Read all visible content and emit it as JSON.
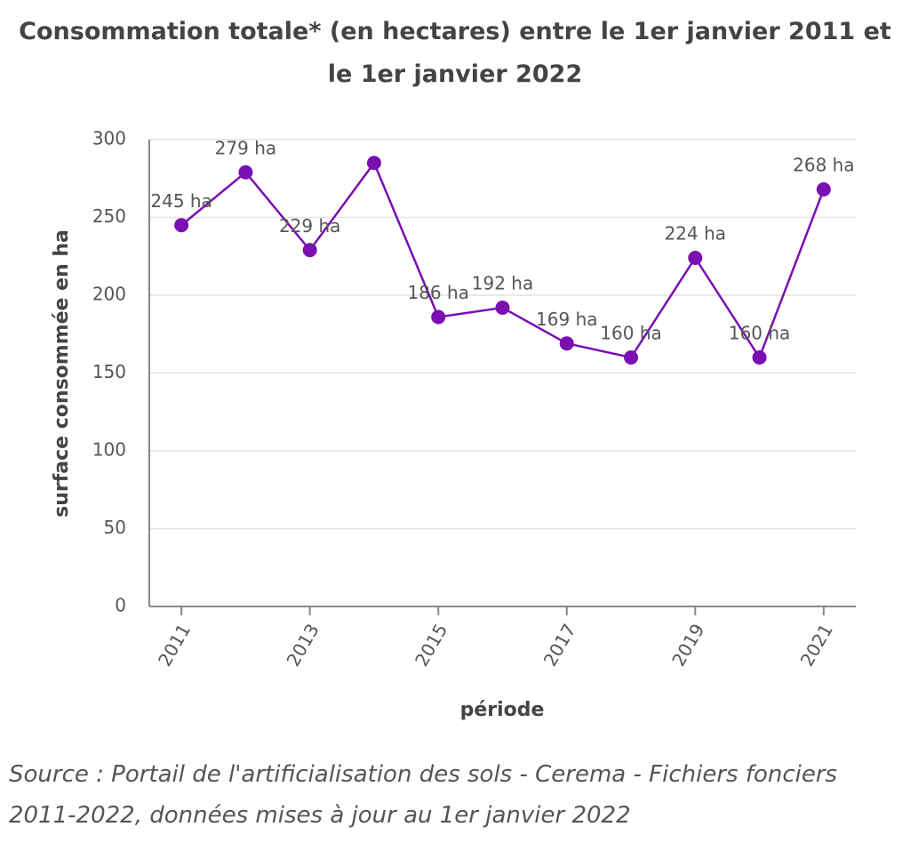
{
  "chart_data": {
    "type": "line",
    "title": "Consommation totale* (en hectares) entre le 1er janvier 2011 et le 1er janvier 2022",
    "x_label": "période",
    "y_label": "surface consommée en ha",
    "source": "Source : Portail de l'artificialisation des sols - Cerema - Fichiers fonciers 2011-2022, données mises à jour au 1er janvier 2022",
    "x": [
      2011,
      2012,
      2013,
      2014,
      2015,
      2016,
      2017,
      2018,
      2019,
      2020,
      2021
    ],
    "series": [
      {
        "color": "#7a0fb2",
        "values": [
          245,
          279,
          229,
          285,
          186,
          192,
          169,
          160,
          224,
          160,
          268
        ],
        "value_labels": [
          "245 ha",
          "279 ha",
          "229 ha",
          null,
          "186 ha",
          "192 ha",
          "169 ha",
          "160 ha",
          "224 ha",
          "160 ha",
          "268 ha"
        ]
      }
    ],
    "xlim": [
      2010.5,
      2021.5
    ],
    "xticks": [
      2011,
      2013,
      2015,
      2017,
      2019,
      2021
    ],
    "ylim": [
      0,
      300
    ],
    "yticks": [
      0,
      50,
      100,
      150,
      200,
      250,
      300
    ],
    "grid": true
  }
}
